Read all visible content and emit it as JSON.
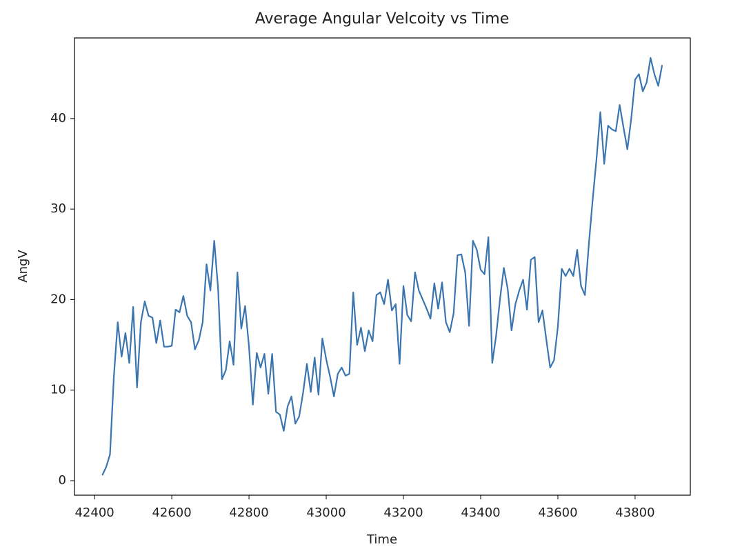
{
  "chart_data": {
    "type": "line",
    "title": "Average Angular Velcoity vs Time",
    "x_label": "Time",
    "y_label": "AngV",
    "x": [
      42420,
      42430,
      42440,
      42450,
      42460,
      42470,
      42480,
      42490,
      42500,
      42510,
      42520,
      42530,
      42540,
      42550,
      42560,
      42570,
      42580,
      42590,
      42600,
      42610,
      42620,
      42630,
      42640,
      42650,
      42660,
      42670,
      42680,
      42690,
      42700,
      42710,
      42720,
      42730,
      42740,
      42750,
      42760,
      42770,
      42780,
      42790,
      42800,
      42810,
      42820,
      42830,
      42840,
      42850,
      42860,
      42870,
      42880,
      42890,
      42900,
      42910,
      42920,
      42930,
      42940,
      42950,
      42960,
      42970,
      42980,
      42990,
      43000,
      43010,
      43020,
      43030,
      43040,
      43050,
      43060,
      43070,
      43080,
      43090,
      43100,
      43110,
      43120,
      43130,
      43140,
      43150,
      43160,
      43170,
      43180,
      43190,
      43200,
      43210,
      43220,
      43230,
      43240,
      43250,
      43260,
      43270,
      43280,
      43290,
      43300,
      43310,
      43320,
      43330,
      43340,
      43350,
      43360,
      43370,
      43380,
      43390,
      43400,
      43410,
      43420,
      43430,
      43440,
      43450,
      43460,
      43470,
      43480,
      43490,
      43500,
      43510,
      43520,
      43530,
      43540,
      43550,
      43560,
      43570,
      43580,
      43590,
      43600,
      43610,
      43620,
      43630,
      43640,
      43650,
      43660,
      43670,
      43680,
      43690,
      43700,
      43710,
      43720,
      43730,
      43740,
      43750,
      43760,
      43770,
      43780,
      43790,
      43800,
      43810,
      43820,
      43830,
      43840,
      43850,
      43860,
      43870
    ],
    "series": [
      {
        "name": "AngV",
        "color": "#3a75b0",
        "values": [
          0.6,
          1.5,
          2.9,
          11.5,
          17.5,
          13.7,
          16.3,
          13.0,
          19.2,
          10.3,
          17.5,
          19.8,
          18.2,
          18.0,
          15.2,
          17.7,
          14.8,
          14.8,
          14.9,
          18.9,
          18.6,
          20.4,
          18.2,
          17.5,
          14.5,
          15.5,
          17.5,
          23.9,
          21.0,
          26.5,
          21.2,
          11.2,
          12.2,
          15.4,
          12.8,
          23.0,
          16.8,
          19.3,
          14.8,
          8.4,
          14.1,
          12.5,
          14.0,
          9.6,
          14.0,
          7.6,
          7.3,
          5.5,
          8.2,
          9.3,
          6.3,
          7.1,
          9.7,
          12.9,
          9.8,
          13.6,
          9.5,
          15.7,
          13.4,
          11.5,
          9.3,
          11.8,
          12.5,
          11.6,
          11.8,
          20.8,
          15.0,
          16.9,
          14.3,
          16.6,
          15.4,
          20.5,
          20.8,
          19.5,
          22.2,
          18.8,
          19.5,
          12.9,
          21.5,
          18.3,
          17.6,
          23.0,
          21.0,
          20.0,
          19.0,
          17.9,
          21.8,
          19.0,
          21.9,
          17.5,
          16.4,
          18.5,
          24.9,
          25.0,
          23.0,
          17.1,
          26.5,
          25.5,
          23.3,
          22.8,
          26.9,
          13.0,
          16.0,
          20.0,
          23.5,
          21.2,
          16.6,
          19.5,
          21.0,
          22.2,
          18.9,
          24.4,
          24.7,
          17.5,
          18.8,
          15.6,
          12.5,
          13.3,
          17.0,
          23.4,
          22.6,
          23.4,
          22.6,
          25.5,
          21.5,
          20.5,
          26.0,
          31.0,
          35.5,
          40.7,
          35.0,
          39.2,
          38.8,
          38.6,
          41.5,
          39.0,
          36.6,
          40.0,
          44.3,
          44.9,
          43.0,
          44.0,
          46.7,
          44.9,
          43.6,
          45.9
        ]
      }
    ],
    "xlim": [
      42348,
      43943
    ],
    "ylim": [
      -1.6,
      48.9
    ],
    "xticks": [
      42400,
      42600,
      42800,
      43000,
      43200,
      43400,
      43600,
      43800
    ],
    "yticks": [
      0,
      10,
      20,
      30,
      40
    ],
    "grid": false
  }
}
